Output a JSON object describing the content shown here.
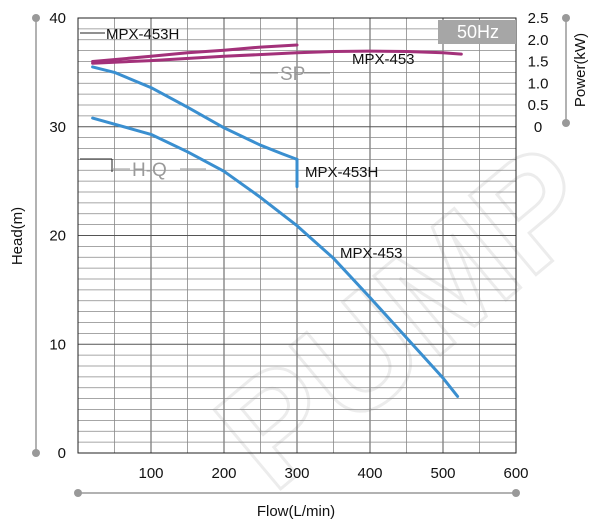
{
  "chart_data": {
    "type": "line",
    "xlabel": "Flow(L/min)",
    "ylabel": "Head(m)",
    "y2label": "Power(kW)",
    "xlim": [
      0,
      600
    ],
    "ylim": [
      0,
      40
    ],
    "y2lim": [
      0,
      2.5
    ],
    "x_ticks": [
      "100",
      "200",
      "300",
      "400",
      "500",
      "600"
    ],
    "y_ticks": [
      "0",
      "10",
      "20",
      "30",
      "40"
    ],
    "y2_ticks": [
      "0",
      "0.5",
      "1.0",
      "1.5",
      "2.0",
      "2.5"
    ],
    "grid": true,
    "colors": {
      "head": "#3a8fd0",
      "power": "#a3317a"
    },
    "badge": "50Hz",
    "watermark": "PUMP",
    "annotations": {
      "sp": "SP",
      "hq": "H-Q",
      "power_h": "MPX-453H",
      "power_std": "MPX-453",
      "head_h": "MPX-453H",
      "head_std": "MPX-453"
    },
    "series": [
      {
        "kind": "head",
        "x": [
          20,
          50,
          100,
          150,
          200,
          250,
          280,
          300
        ],
        "y": [
          35.5,
          35.0,
          33.6,
          31.8,
          29.9,
          28.3,
          27.5,
          27.0
        ]
      },
      {
        "kind": "head",
        "x": [
          20,
          100,
          150,
          200,
          250,
          300,
          350,
          400,
          450,
          500,
          520
        ],
        "y": [
          30.8,
          29.3,
          27.7,
          25.9,
          23.5,
          20.9,
          17.9,
          14.3,
          10.6,
          6.9,
          5.2
        ]
      },
      {
        "kind": "power",
        "x": [
          20,
          100,
          150,
          200,
          250,
          300
        ],
        "y": [
          1.5,
          1.62,
          1.7,
          1.76,
          1.83,
          1.88
        ]
      },
      {
        "kind": "power",
        "x": [
          20,
          100,
          200,
          300,
          350,
          400,
          450,
          500,
          525
        ],
        "y": [
          1.46,
          1.52,
          1.62,
          1.7,
          1.73,
          1.74,
          1.73,
          1.7,
          1.67
        ]
      }
    ]
  }
}
